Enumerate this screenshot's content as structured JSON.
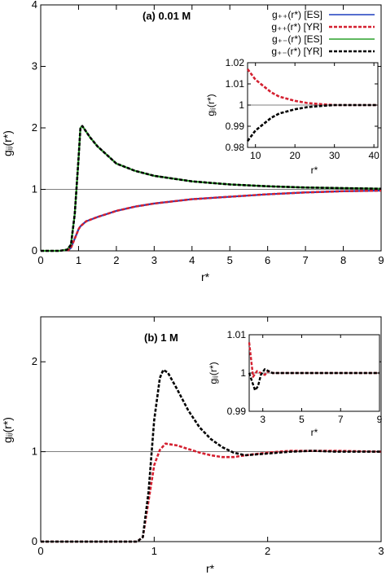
{
  "colors": {
    "es_line": "#1f3fbf",
    "yr_red": "#d42030",
    "green": "#2aa02a",
    "black": "#000000",
    "reference": "#555555"
  },
  "legend": {
    "entries": [
      {
        "text": "g₊₊(r*) [ES]",
        "color": "#1f3fbf",
        "dashed": false
      },
      {
        "text": "g₊₊(r*) [YR]",
        "color": "#d42030",
        "dashed": true
      },
      {
        "text": "g₊₋(r*) [ES]",
        "color": "#2aa02a",
        "dashed": false
      },
      {
        "text": "g₊₋(r*) [YR]",
        "color": "#000000",
        "dashed": true
      }
    ]
  },
  "chart_data": [
    {
      "type": "line",
      "title": "(a) 0.01 M",
      "xlabel": "r*",
      "ylabel": "gᵢⱼ(r*)",
      "xlim": [
        0,
        9
      ],
      "ylim": [
        0,
        4
      ],
      "xticks": [
        0,
        1,
        2,
        3,
        4,
        5,
        6,
        7,
        8,
        9
      ],
      "yticks": [
        0,
        1,
        2,
        3,
        4
      ],
      "reference_line": 1,
      "legend_position": "top-right",
      "series": [
        {
          "name": "g++(r*) [ES]",
          "x": [
            0.7,
            0.8,
            0.9,
            1.0,
            1.05,
            1.2,
            1.5,
            2.0,
            2.5,
            3.0,
            4.0,
            5.0,
            6.0,
            7.0,
            8.0,
            9.0
          ],
          "y": [
            0.0,
            0.05,
            0.2,
            0.35,
            0.4,
            0.48,
            0.55,
            0.65,
            0.72,
            0.77,
            0.84,
            0.88,
            0.92,
            0.95,
            0.97,
            0.98
          ]
        },
        {
          "name": "g++(r*) [YR]",
          "x": [
            0.7,
            0.8,
            0.9,
            1.0,
            1.05,
            1.2,
            1.5,
            2.0,
            2.5,
            3.0,
            4.0,
            5.0,
            6.0,
            7.0,
            8.0,
            9.0
          ],
          "y": [
            0.0,
            0.05,
            0.2,
            0.35,
            0.4,
            0.48,
            0.55,
            0.65,
            0.72,
            0.77,
            0.84,
            0.88,
            0.92,
            0.95,
            0.97,
            0.98
          ]
        },
        {
          "name": "g+-(r*) [ES]",
          "x": [
            0.0,
            0.5,
            0.7,
            0.8,
            0.9,
            1.0,
            1.05,
            1.1,
            1.3,
            1.5,
            2.0,
            2.5,
            3.0,
            4.0,
            5.0,
            6.0,
            7.0,
            8.0,
            9.0
          ],
          "y": [
            0.0,
            0.0,
            0.02,
            0.1,
            0.6,
            1.5,
            2.0,
            2.03,
            1.85,
            1.7,
            1.42,
            1.3,
            1.22,
            1.13,
            1.08,
            1.05,
            1.03,
            1.02,
            1.01
          ]
        },
        {
          "name": "g+-(r*) [YR]",
          "x": [
            0.0,
            0.5,
            0.7,
            0.8,
            0.9,
            1.0,
            1.05,
            1.1,
            1.3,
            1.5,
            2.0,
            2.5,
            3.0,
            4.0,
            5.0,
            6.0,
            7.0,
            8.0,
            9.0
          ],
          "y": [
            0.0,
            0.0,
            0.02,
            0.1,
            0.6,
            1.5,
            2.0,
            2.03,
            1.85,
            1.7,
            1.42,
            1.3,
            1.22,
            1.13,
            1.08,
            1.05,
            1.03,
            1.02,
            1.01
          ]
        }
      ],
      "inset": {
        "xlabel": "r*",
        "ylabel": "gᵢⱼ(r*)",
        "xlim": [
          8,
          41
        ],
        "ylim": [
          0.98,
          1.02
        ],
        "xticks": [
          10,
          20,
          30,
          40
        ],
        "yticks": [
          0.98,
          0.99,
          1,
          1.01,
          1.02
        ],
        "ytick_labels": [
          "0.98",
          "0.99",
          "1",
          "1.01",
          "1.02"
        ],
        "reference_line": 1,
        "series": [
          {
            "name": "g++ [YR]",
            "x": [
              8,
              10,
              12,
              14,
              16,
              18,
              20,
              23,
              26,
              30,
              35,
              41
            ],
            "y": [
              1.017,
              1.012,
              1.009,
              1.006,
              1.004,
              1.003,
              1.002,
              1.001,
              1.0005,
              1.0,
              1.0,
              1.0
            ]
          },
          {
            "name": "g+- [YR]",
            "x": [
              8,
              10,
              12,
              14,
              16,
              18,
              20,
              23,
              26,
              30,
              35,
              41
            ],
            "y": [
              0.983,
              0.988,
              0.991,
              0.994,
              0.996,
              0.997,
              0.998,
              0.999,
              0.9995,
              1.0,
              1.0,
              1.0
            ]
          }
        ]
      }
    },
    {
      "type": "line",
      "title": "(b) 1 M",
      "xlabel": "r*",
      "ylabel": "gᵢⱼ(r*)",
      "xlim": [
        0,
        3
      ],
      "ylim": [
        0,
        2.5
      ],
      "xticks": [
        0,
        1,
        2,
        3
      ],
      "yticks": [
        0,
        1,
        2
      ],
      "reference_line": 1,
      "series": [
        {
          "name": "g++ [YR]",
          "x": [
            0.0,
            0.85,
            0.9,
            0.95,
            1.0,
            1.05,
            1.1,
            1.2,
            1.3,
            1.4,
            1.5,
            1.6,
            1.7,
            1.8,
            2.0,
            2.2,
            2.4,
            2.6,
            3.0
          ],
          "y": [
            0.0,
            0.0,
            0.05,
            0.45,
            0.85,
            1.02,
            1.09,
            1.07,
            1.03,
            0.99,
            0.96,
            0.94,
            0.94,
            0.96,
            0.99,
            1.01,
            1.01,
            1.01,
            1.0
          ]
        },
        {
          "name": "g+- [YR]",
          "x": [
            0.0,
            0.85,
            0.9,
            0.95,
            1.0,
            1.05,
            1.08,
            1.12,
            1.2,
            1.3,
            1.4,
            1.5,
            1.6,
            1.7,
            1.8,
            2.0,
            2.2,
            2.4,
            2.6,
            3.0
          ],
          "y": [
            0.0,
            0.0,
            0.05,
            0.55,
            1.35,
            1.82,
            1.91,
            1.88,
            1.7,
            1.46,
            1.27,
            1.14,
            1.05,
            0.99,
            0.96,
            0.98,
            1.0,
            1.01,
            1.0,
            1.0
          ]
        }
      ],
      "inset": {
        "xlabel": "r*",
        "ylabel": "gᵢⱼ(r*)",
        "xlim": [
          2.3,
          9
        ],
        "ylim": [
          0.99,
          1.01
        ],
        "xticks": [
          3,
          5,
          7,
          9
        ],
        "yticks": [
          0.99,
          1,
          1.01
        ],
        "ytick_labels": [
          "0.99",
          "1",
          "1.01"
        ],
        "reference_line": 1,
        "series": [
          {
            "name": "g++ [YR]",
            "x": [
              2.3,
              2.5,
              2.7,
              2.9,
              3.1,
              3.3,
              3.5,
              4,
              4.5,
              5,
              6,
              7,
              8,
              9
            ],
            "y": [
              1.008,
              0.999,
              1.0005,
              1.0,
              0.9995,
              1.0005,
              1.0,
              1.0,
              1.0,
              1.0,
              1.0,
              1.0,
              1.0,
              1.0
            ]
          },
          {
            "name": "g+- [YR]",
            "x": [
              2.3,
              2.5,
              2.6,
              2.75,
              2.9,
              3.1,
              3.3,
              3.5,
              4,
              4.5,
              5,
              6,
              7,
              8,
              9
            ],
            "y": [
              1.0,
              0.997,
              0.9955,
              0.9965,
              0.9995,
              1.001,
              1.0005,
              1.0,
              1.0,
              1.0,
              1.0,
              1.0,
              1.0,
              1.0,
              1.0
            ]
          }
        ]
      }
    }
  ]
}
